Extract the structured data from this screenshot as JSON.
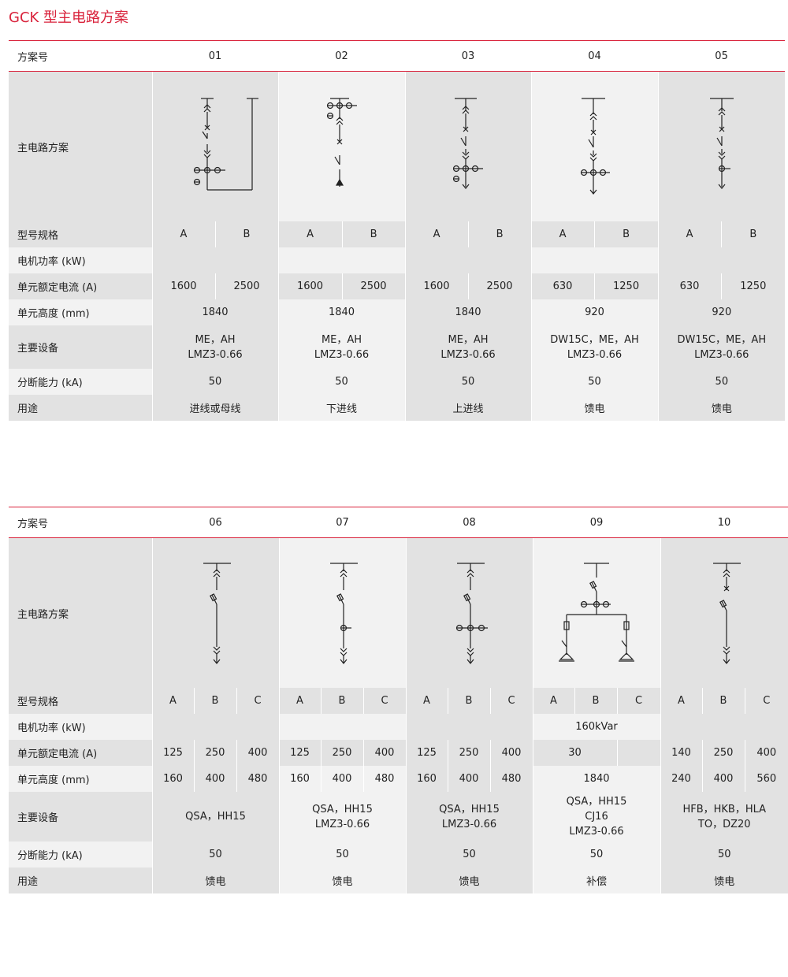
{
  "title": "GCK 型主电路方案",
  "row_labels": {
    "scheme": "方案号",
    "circuit": "主电路方案",
    "model": "型号规格",
    "motor": "电机功率 (kW)",
    "current": "单元额定电流 (A)",
    "height": "单元高度 (mm)",
    "equipment": "主要设备",
    "breaking": "分断能力 (kA)",
    "use": "用途"
  },
  "table1": {
    "schemes": [
      "01",
      "02",
      "03",
      "04",
      "05"
    ],
    "models": [
      "A",
      "B",
      "A",
      "B",
      "A",
      "B",
      "A",
      "B",
      "A",
      "B"
    ],
    "currents": [
      "1600",
      "2500",
      "1600",
      "2500",
      "1600",
      "2500",
      "630",
      "1250",
      "630",
      "1250"
    ],
    "heights": [
      "1840",
      "1840",
      "1840",
      "920",
      "920"
    ],
    "equipment": [
      [
        "ME，AH",
        "LMZ3-0.66"
      ],
      [
        "ME，AH",
        "LMZ3-0.66"
      ],
      [
        "ME，AH",
        "LMZ3-0.66"
      ],
      [
        "DW15C，ME，AH",
        "LMZ3-0.66"
      ],
      [
        "DW15C，ME，AH",
        "LMZ3-0.66"
      ]
    ],
    "breaking": [
      "50",
      "50",
      "50",
      "50",
      "50"
    ],
    "uses": [
      "进线或母线",
      "下进线",
      "上进线",
      "馈电",
      "馈电"
    ]
  },
  "table2": {
    "schemes": [
      "06",
      "07",
      "08",
      "09",
      "10"
    ],
    "models": [
      "A",
      "B",
      "C",
      "A",
      "B",
      "C",
      "A",
      "B",
      "C",
      "A",
      "B",
      "C",
      "A",
      "B",
      "C"
    ],
    "motor_09": "160kVar",
    "currents": [
      "125",
      "250",
      "400",
      "125",
      "250",
      "400",
      "125",
      "250",
      "400",
      "30",
      "140",
      "250",
      "400"
    ],
    "heights": [
      "160",
      "400",
      "480",
      "160",
      "400",
      "480",
      "160",
      "400",
      "480",
      "1840",
      "240",
      "400",
      "560"
    ],
    "equipment": [
      [
        "QSA，HH15"
      ],
      [
        "QSA，HH15",
        "LMZ3-0.66"
      ],
      [
        "QSA，HH15",
        "LMZ3-0.66"
      ],
      [
        "QSA，HH15",
        "CJ16",
        "LMZ3-0.66"
      ],
      [
        "HFB，HKB，HLA",
        "TO，DZ20"
      ]
    ],
    "breaking": [
      "50",
      "50",
      "50",
      "50",
      "50"
    ],
    "uses": [
      "馈电",
      "馈电",
      "馈电",
      "补偿",
      "馈电"
    ]
  }
}
